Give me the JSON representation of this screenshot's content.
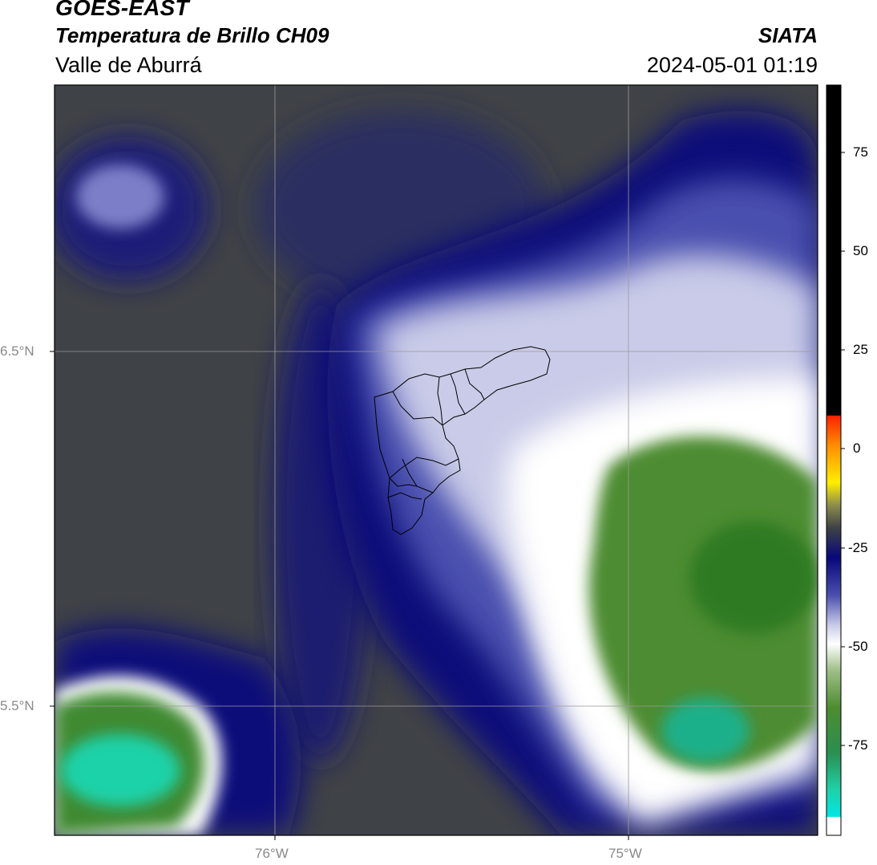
{
  "header": {
    "satellite": "GOES-EAST",
    "product": "Temperatura de Brillo CH09",
    "organization": "SIATA",
    "region": "Valle de Aburrá",
    "datetime": "2024-05-01 01:19"
  },
  "map": {
    "lat_labels": [
      "6.5°N",
      "5.5°N"
    ],
    "lon_labels": [
      "76°W",
      "75°W"
    ]
  },
  "colorbar": {
    "ticks": [
      "75",
      "50",
      "25",
      "0",
      "-25",
      "-50",
      "-75"
    ],
    "palette": {
      "warm_black": "#000000",
      "red": "#ff2200",
      "orange": "#ff8c00",
      "yellow": "#ffee00",
      "dark_gray": "#3f4246",
      "navy": "#07087a",
      "mid_blue": "#4a4fae",
      "lavender": "#c9cbe8",
      "white": "#ffffff",
      "green": "#4d8c30",
      "teal": "#1fd2a8",
      "cyan": "#00e5e5"
    }
  }
}
